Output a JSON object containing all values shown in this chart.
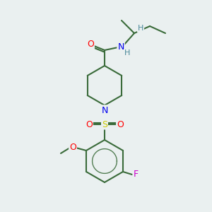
{
  "background_color": "#eaf0f0",
  "bond_color": "#3a6b3a",
  "atom_colors": {
    "O": "#ff0000",
    "N": "#0000ee",
    "S": "#cccc00",
    "F": "#cc00cc",
    "H": "#4a8899",
    "C": "#3a6b3a"
  },
  "figsize": [
    3.0,
    3.0
  ],
  "dpi": 100
}
